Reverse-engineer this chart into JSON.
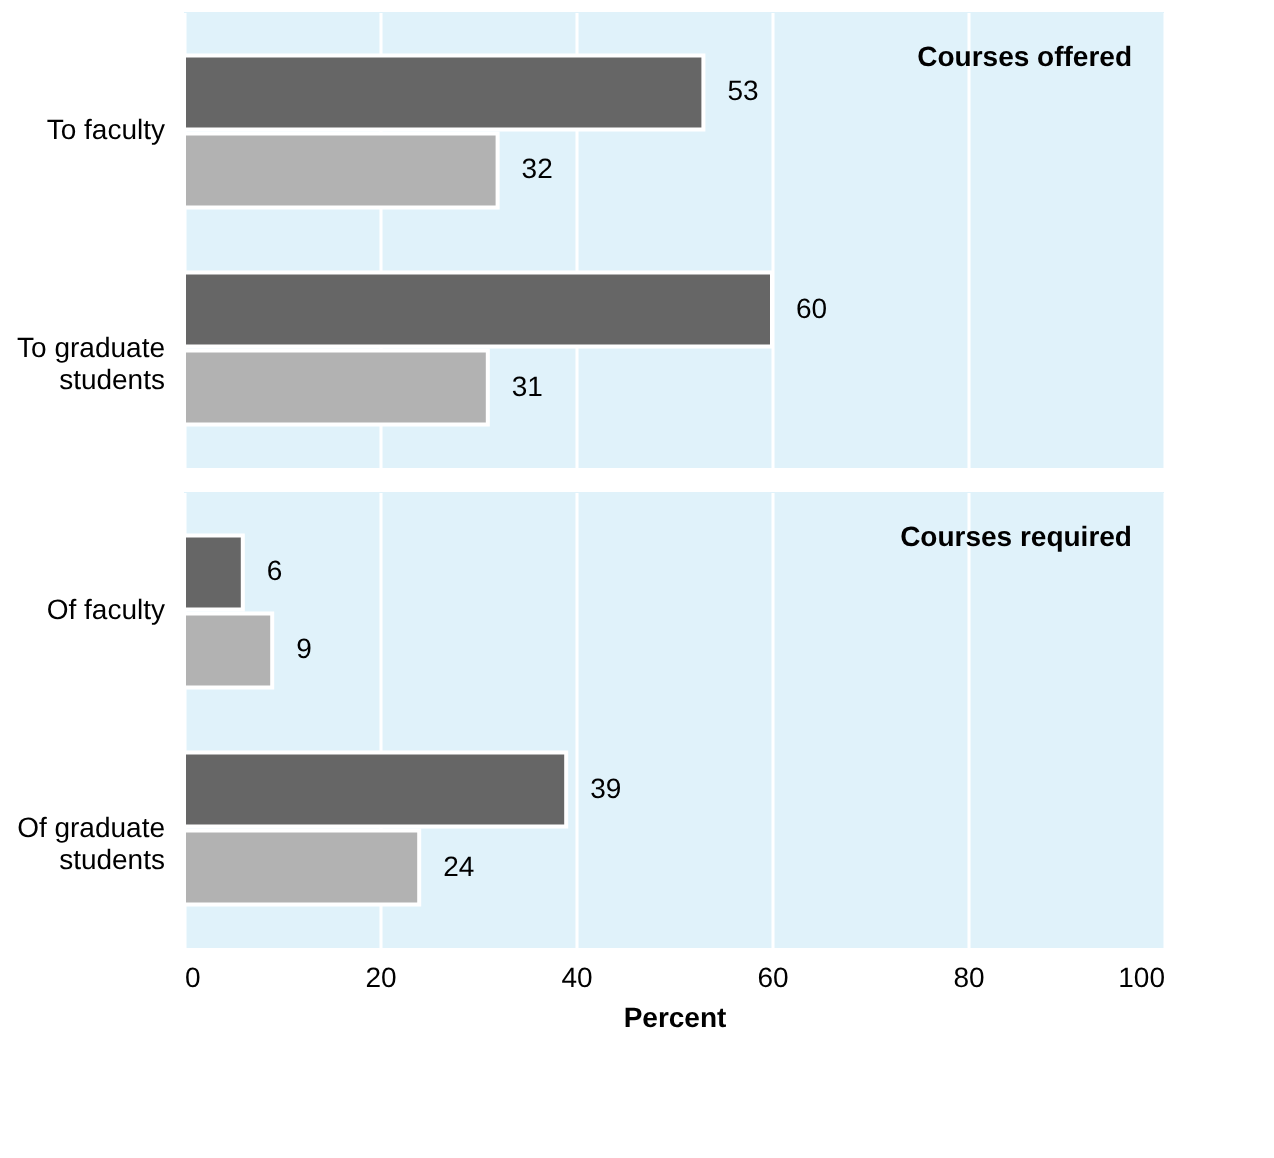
{
  "chart_data": [
    {
      "type": "bar",
      "orientation": "horizontal",
      "title": "Courses offered",
      "categories": [
        "To faculty",
        "To graduate students"
      ],
      "series": [
        {
          "color": "#666666",
          "values": [
            53,
            60
          ]
        },
        {
          "color": "#b2b2b2",
          "values": [
            32,
            31
          ]
        }
      ],
      "xlim": [
        0,
        100
      ],
      "xticks": [
        0,
        20,
        40,
        60,
        80,
        100
      ],
      "grid": "x",
      "data_labels": true,
      "tick_labels": "y"
    },
    {
      "type": "bar",
      "orientation": "horizontal",
      "title": "Courses required",
      "xlabel": "Percent",
      "categories": [
        "Of faculty",
        "Of graduate students"
      ],
      "series": [
        {
          "color": "#666666",
          "values": [
            6,
            39
          ]
        },
        {
          "color": "#b2b2b2",
          "values": [
            9,
            24
          ]
        }
      ],
      "xlim": [
        0,
        100
      ],
      "xticks": [
        0,
        20,
        40,
        60,
        80,
        100
      ],
      "grid": "x",
      "data_labels": true
    }
  ]
}
